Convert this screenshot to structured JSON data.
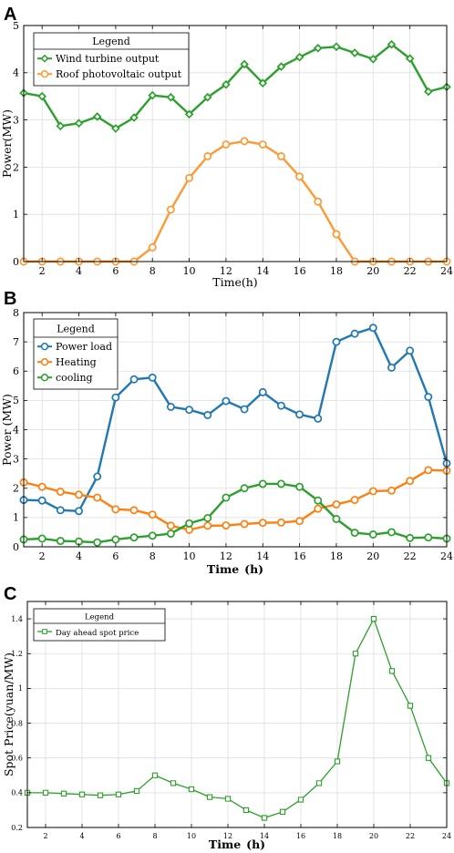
{
  "panels": [
    {
      "letter": "A"
    },
    {
      "letter": "B"
    },
    {
      "letter": "C"
    }
  ],
  "chart_data": [
    {
      "type": "line",
      "panel": "A",
      "xlabel": "Time(h)",
      "ylabel": "Power(MW)",
      "xlim": [
        1,
        24
      ],
      "ylim": [
        0,
        5
      ],
      "xticks": [
        2,
        4,
        6,
        8,
        10,
        12,
        14,
        16,
        18,
        20,
        22,
        24
      ],
      "yticks": [
        0,
        1,
        2,
        3,
        4,
        5
      ],
      "grid": true,
      "legend": {
        "title": "Legend",
        "position": "top-left"
      },
      "x": [
        1,
        2,
        3,
        4,
        5,
        6,
        7,
        8,
        9,
        10,
        11,
        12,
        13,
        14,
        15,
        16,
        17,
        18,
        19,
        20,
        21,
        22,
        23,
        24
      ],
      "series": [
        {
          "name": "Wind turbine output",
          "color": "#2ca02c",
          "marker": "diamond",
          "values": [
            3.57,
            3.5,
            2.87,
            2.93,
            3.07,
            2.82,
            3.05,
            3.52,
            3.48,
            3.12,
            3.48,
            3.75,
            4.18,
            3.78,
            4.13,
            4.33,
            4.52,
            4.55,
            4.42,
            4.29,
            4.6,
            4.3,
            3.6,
            3.7
          ]
        },
        {
          "name": "Roof photovoltaic output",
          "color": "#ff9933",
          "marker": "circle",
          "values": [
            0,
            0,
            0,
            0,
            0,
            0,
            0,
            0.3,
            1.1,
            1.77,
            2.23,
            2.48,
            2.55,
            2.48,
            2.23,
            1.8,
            1.27,
            0.58,
            0,
            0,
            0,
            0,
            0,
            0
          ]
        }
      ]
    },
    {
      "type": "line",
      "panel": "B",
      "xlabel": "Time",
      "xlabel_unit": "(h)",
      "ylabel": "Power (MW)",
      "xlim": [
        1,
        24
      ],
      "ylim": [
        0,
        8
      ],
      "xticks": [
        2,
        4,
        6,
        8,
        10,
        12,
        14,
        16,
        18,
        20,
        22,
        24
      ],
      "yticks": [
        0,
        1,
        2,
        3,
        4,
        5,
        6,
        7,
        8
      ],
      "grid": true,
      "legend": {
        "title": "Legend",
        "position": "top-left"
      },
      "x": [
        1,
        2,
        3,
        4,
        5,
        6,
        7,
        8,
        9,
        10,
        11,
        12,
        13,
        14,
        15,
        16,
        17,
        18,
        19,
        20,
        21,
        22,
        23,
        24
      ],
      "series": [
        {
          "name": "Power load",
          "color": "#1f77b4",
          "marker": "circle",
          "values": [
            1.6,
            1.58,
            1.25,
            1.22,
            2.4,
            5.1,
            5.72,
            5.78,
            4.78,
            4.68,
            4.5,
            4.98,
            4.7,
            5.28,
            4.82,
            4.52,
            4.38,
            7.0,
            7.28,
            7.48,
            6.12,
            6.7,
            5.12,
            2.85
          ]
        },
        {
          "name": "Heating",
          "color": "#ff7f0e",
          "marker": "circle",
          "values": [
            2.2,
            2.05,
            1.88,
            1.78,
            1.68,
            1.28,
            1.25,
            1.1,
            0.72,
            0.58,
            0.72,
            0.73,
            0.78,
            0.82,
            0.83,
            0.88,
            1.3,
            1.45,
            1.6,
            1.9,
            1.92,
            2.25,
            2.62,
            2.6
          ]
        },
        {
          "name": "cooling",
          "color": "#2ca02c",
          "marker": "circle",
          "values": [
            0.25,
            0.28,
            0.2,
            0.18,
            0.15,
            0.25,
            0.32,
            0.38,
            0.45,
            0.8,
            0.98,
            1.68,
            2.0,
            2.15,
            2.15,
            2.05,
            1.58,
            0.95,
            0.48,
            0.42,
            0.5,
            0.3,
            0.32,
            0.28
          ]
        }
      ]
    },
    {
      "type": "line",
      "panel": "C",
      "xlabel": "Time",
      "xlabel_unit": "(h)",
      "ylabel": "Spot Price(yuan/MW)",
      "xlim": [
        1,
        24
      ],
      "ylim": [
        0.2,
        1.5
      ],
      "xticks": [
        2,
        4,
        6,
        8,
        10,
        12,
        14,
        16,
        18,
        20,
        22,
        24
      ],
      "yticks": [
        0.2,
        0.4,
        0.6,
        0.8,
        1,
        1.2,
        1.4
      ],
      "ytick_labels": [
        "0.2",
        "0.4",
        "0.6",
        "0.8",
        "1",
        "1.2",
        "1.4"
      ],
      "grid": true,
      "legend": {
        "title": "Legend",
        "position": "top-left"
      },
      "x": [
        1,
        2,
        3,
        4,
        5,
        6,
        7,
        8,
        9,
        10,
        11,
        12,
        13,
        14,
        15,
        16,
        17,
        18,
        19,
        20,
        21,
        22,
        23,
        24
      ],
      "series": [
        {
          "name": "Day ahead spot price",
          "color": "#2ca02c",
          "marker": "square",
          "values": [
            0.4,
            0.4,
            0.395,
            0.39,
            0.385,
            0.39,
            0.41,
            0.5,
            0.455,
            0.42,
            0.375,
            0.365,
            0.3,
            0.255,
            0.29,
            0.36,
            0.455,
            0.58,
            1.2,
            1.4,
            1.1,
            0.9,
            0.6,
            0.455
          ]
        }
      ]
    }
  ]
}
